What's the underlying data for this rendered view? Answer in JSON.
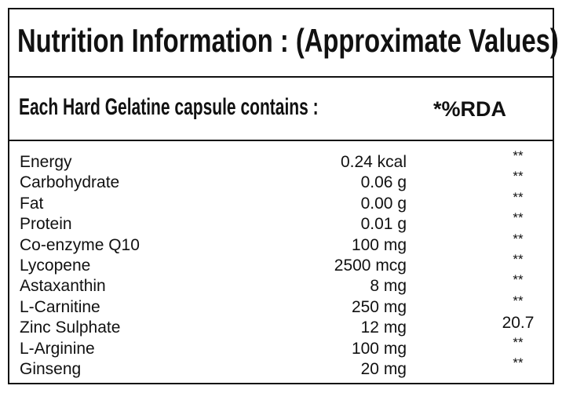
{
  "title": "Nutrition Information : (Approximate Values)",
  "header": {
    "left": "Each Hard Gelatine capsule contains :",
    "right": "*%RDA"
  },
  "table": {
    "rows": [
      [
        "Energy",
        "0.24 kcal",
        "**"
      ],
      [
        "Carbohydrate",
        "0.06 g",
        "**"
      ],
      [
        "Fat",
        "0.00 g",
        "**"
      ],
      [
        "Protein",
        "0.01 g",
        "**"
      ],
      [
        "Co-enzyme Q10",
        "100 mg",
        "**"
      ],
      [
        "Lycopene",
        "2500 mcg",
        "**"
      ],
      [
        "Astaxanthin",
        "8 mg",
        "**"
      ],
      [
        "L-Carnitine",
        "250 mg",
        "**"
      ],
      [
        "Zinc Sulphate",
        "12 mg",
        "20.7"
      ],
      [
        "L-Arginine",
        "100 mg",
        "**"
      ],
      [
        "Ginseng",
        "20 mg",
        "**"
      ]
    ]
  }
}
